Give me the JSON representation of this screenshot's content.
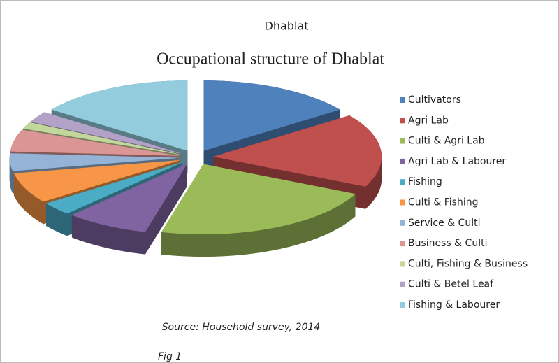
{
  "chart_data": {
    "type": "pie3d",
    "subtitle": "Dhablat",
    "title": "Occupational structure of Dhablat",
    "annotations": [
      "Source: Household survey, 2014",
      "Fig 1"
    ],
    "legend": "right",
    "series": [
      {
        "name": "Cultivators",
        "color": "#4F81BD",
        "value": 15
      },
      {
        "name": "Agri Lab",
        "color": "#C0504D",
        "value": 17
      },
      {
        "name": "Culti & Agri Lab",
        "color": "#9BBB59",
        "value": 22
      },
      {
        "name": "Agri Lab & Labourer",
        "color": "#8064A2",
        "value": 8
      },
      {
        "name": "Fishing",
        "color": "#4BACC6",
        "value": 3
      },
      {
        "name": "Culti & Fishing",
        "color": "#F79646",
        "value": 7
      },
      {
        "name": "Service & Culti",
        "color": "#95B3D7",
        "value": 4
      },
      {
        "name": "Business & Culti",
        "color": "#D99694",
        "value": 5
      },
      {
        "name": "Culti, Fishing & Business",
        "color": "#C3D69B",
        "value": 1.5
      },
      {
        "name": "Culti & Betel Leaf",
        "color": "#B3A2C7",
        "value": 2.5
      },
      {
        "name": "Fishing & Labourer",
        "color": "#93CDDD",
        "value": 15
      }
    ]
  }
}
